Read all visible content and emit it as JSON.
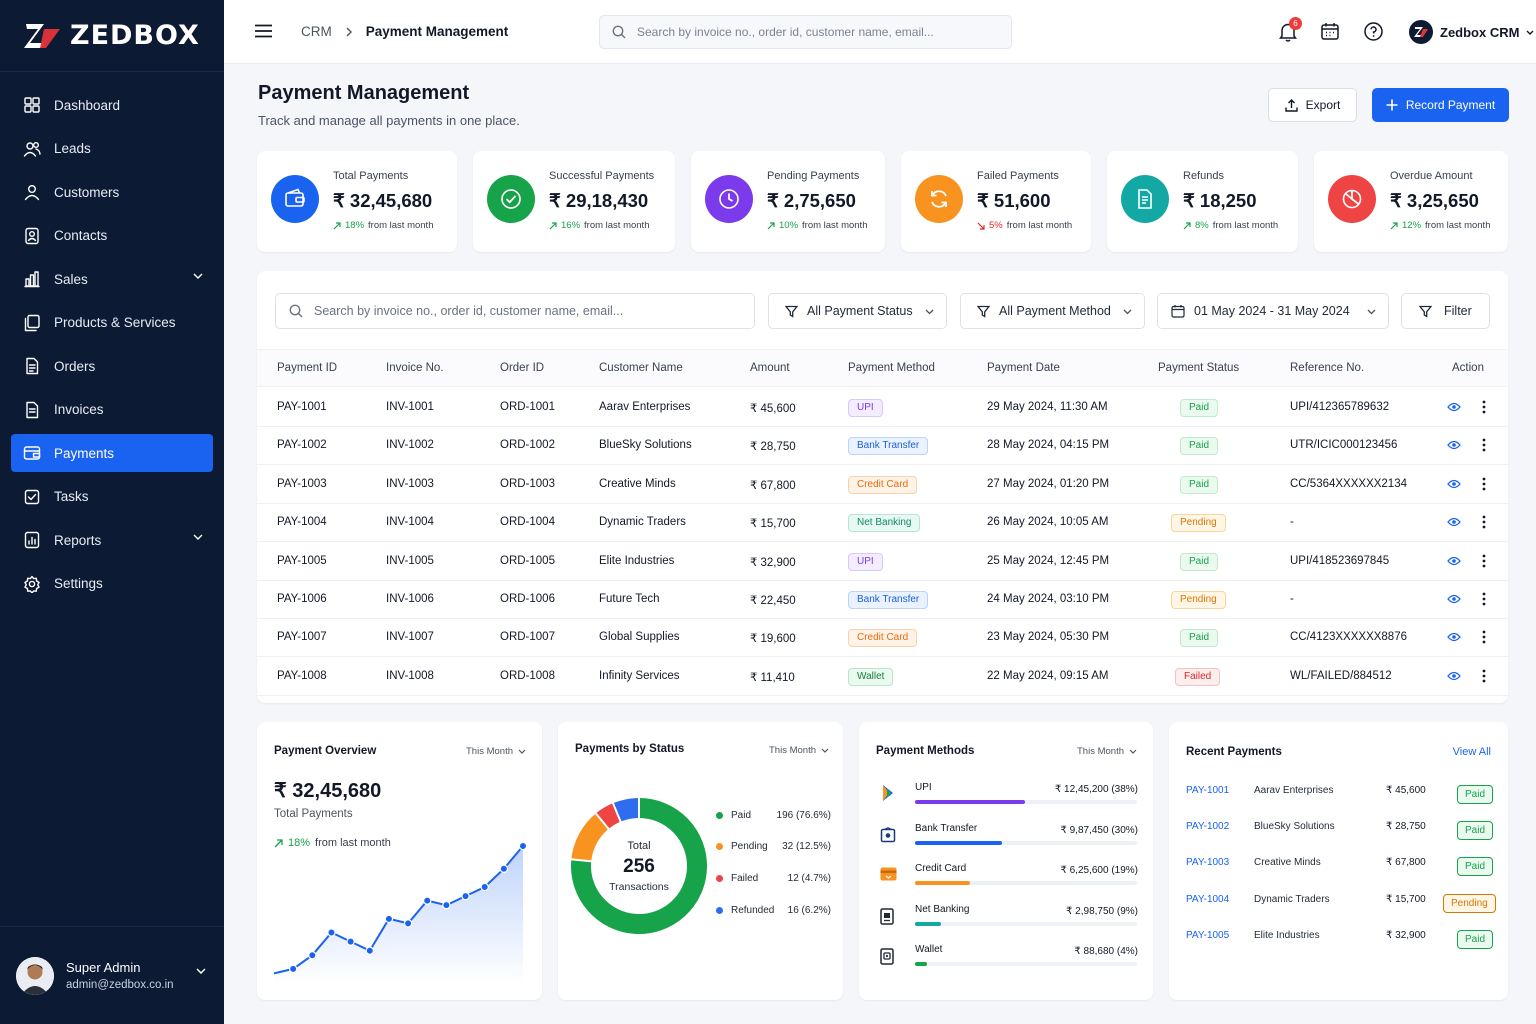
{
  "brand": {
    "name": "ZEDBOX"
  },
  "sidebar": {
    "items": [
      {
        "label": "Dashboard"
      },
      {
        "label": "Leads"
      },
      {
        "label": "Customers"
      },
      {
        "label": "Contacts"
      },
      {
        "label": "Sales"
      },
      {
        "label": "Products & Services"
      },
      {
        "label": "Orders"
      },
      {
        "label": "Invoices"
      },
      {
        "label": "Payments"
      },
      {
        "label": "Tasks"
      },
      {
        "label": "Reports"
      },
      {
        "label": "Settings"
      }
    ],
    "active_item": "Payments",
    "user": {
      "name": "Super Admin",
      "email": "admin@zedbox.co.in"
    }
  },
  "topbar": {
    "breadcrumb": [
      "CRM",
      "Payment Management"
    ],
    "search_placeholder": "Search by invoice no., order id, customer name, email...",
    "notification_count": "6",
    "account_name": "Zedbox CRM"
  },
  "header": {
    "title": "Payment Management",
    "subtitle": "Track and manage all payments in one place.",
    "export_label": "Export",
    "record_label": "Record Payment"
  },
  "kpis": [
    {
      "label": "Total Payments",
      "value": "₹ 32,45,680",
      "change": "18%",
      "direction": "up",
      "suffix": "from last month",
      "color": "#1a63f0"
    },
    {
      "label": "Successful Payments",
      "value": "₹ 29,18,430",
      "change": "16%",
      "direction": "up",
      "suffix": "from last month",
      "color": "#16a34a"
    },
    {
      "label": "Pending Payments",
      "value": "₹ 2,75,650",
      "change": "10%",
      "direction": "up",
      "suffix": "from last month",
      "color": "#7c3aed"
    },
    {
      "label": "Failed Payments",
      "value": "₹ 51,600",
      "change": "5%",
      "direction": "down",
      "suffix": "from last month",
      "color": "#f7931e"
    },
    {
      "label": "Refunds",
      "value": "₹ 18,250",
      "change": "8%",
      "direction": "up",
      "suffix": "from last month",
      "color": "#14a8a4"
    },
    {
      "label": "Overdue Amount",
      "value": "₹ 3,25,650",
      "change": "12%",
      "direction": "up",
      "suffix": "from last month",
      "color": "#ef4444"
    }
  ],
  "filters": {
    "search_placeholder": "Search by invoice no., order id, customer name, email...",
    "status": "All Payment Status",
    "method": "All Payment Method",
    "date_range": "01 May 2024 - 31 May 2024",
    "filter_label": "Filter"
  },
  "table": {
    "columns": [
      "Payment ID",
      "Invoice No.",
      "Order ID",
      "Customer Name",
      "Amount",
      "Payment Method",
      "Payment Date",
      "Payment Status",
      "Reference No.",
      "Action"
    ],
    "rows": [
      {
        "id": "PAY-1001",
        "invoice": "INV-1001",
        "order": "ORD-1001",
        "customer": "Aarav Enterprises",
        "amount": "₹ 45,600",
        "method": "UPI",
        "date": "29 May 2024, 11:30 AM",
        "status": "Paid",
        "ref": "UPI/412365789632"
      },
      {
        "id": "PAY-1002",
        "invoice": "INV-1002",
        "order": "ORD-1002",
        "customer": "BlueSky Solutions",
        "amount": "₹ 28,750",
        "method": "Bank Transfer",
        "date": "28 May 2024, 04:15 PM",
        "status": "Paid",
        "ref": "UTR/ICIC000123456"
      },
      {
        "id": "PAY-1003",
        "invoice": "INV-1003",
        "order": "ORD-1003",
        "customer": "Creative Minds",
        "amount": "₹ 67,800",
        "method": "Credit Card",
        "date": "27 May 2024, 01:20 PM",
        "status": "Paid",
        "ref": "CC/5364XXXXXX2134"
      },
      {
        "id": "PAY-1004",
        "invoice": "INV-1004",
        "order": "ORD-1004",
        "customer": "Dynamic Traders",
        "amount": "₹ 15,700",
        "method": "Net Banking",
        "date": "26 May 2024, 10:05 AM",
        "status": "Pending",
        "ref": "-"
      },
      {
        "id": "PAY-1005",
        "invoice": "INV-1005",
        "order": "ORD-1005",
        "customer": "Elite Industries",
        "amount": "₹ 32,900",
        "method": "UPI",
        "date": "25 May 2024, 12:45 PM",
        "status": "Paid",
        "ref": "UPI/418523697845"
      },
      {
        "id": "PAY-1006",
        "invoice": "INV-1006",
        "order": "ORD-1006",
        "customer": "Future Tech",
        "amount": "₹ 22,450",
        "method": "Bank Transfer",
        "date": "24 May 2024, 03:10 PM",
        "status": "Pending",
        "ref": "-"
      },
      {
        "id": "PAY-1007",
        "invoice": "INV-1007",
        "order": "ORD-1007",
        "customer": "Global Supplies",
        "amount": "₹ 19,600",
        "method": "Credit Card",
        "date": "23 May 2024, 05:30 PM",
        "status": "Paid",
        "ref": "CC/4123XXXXXX8876"
      },
      {
        "id": "PAY-1008",
        "invoice": "INV-1008",
        "order": "ORD-1008",
        "customer": "Infinity Services",
        "amount": "₹ 11,410",
        "method": "Wallet",
        "date": "22 May 2024, 09:15 AM",
        "status": "Failed",
        "ref": "WL/FAILED/884512"
      }
    ]
  },
  "overview": {
    "title": "Payment Overview",
    "range": "This Month",
    "total": "₹ 32,45,680",
    "total_label": "Total Payments",
    "change": "18%",
    "change_suffix": "from last month"
  },
  "by_status": {
    "title": "Payments by Status",
    "range": "This Month",
    "center_label": "Total",
    "center_value": "256",
    "center_sub": "Transactions"
  },
  "methods": {
    "title": "Payment Methods",
    "range": "This Month",
    "items": [
      {
        "name": "UPI",
        "amount": "₹ 12,45,200 (38%)",
        "share": 0.38,
        "color": "#7c3aed"
      },
      {
        "name": "Bank Transfer",
        "amount": "₹ 9,87,450 (30%)",
        "share": 0.3,
        "color": "#1a63f0"
      },
      {
        "name": "Credit Card",
        "amount": "₹ 6,25,600 (19%)",
        "share": 0.19,
        "color": "#f7931e"
      },
      {
        "name": "Net Banking",
        "amount": "₹ 2,98,750 (9%)",
        "share": 0.09,
        "color": "#14a8a4"
      },
      {
        "name": "Wallet",
        "amount": "₹ 88,680 (4%)",
        "share": 0.04,
        "color": "#16a34a"
      }
    ]
  },
  "recent": {
    "title": "Recent Payments",
    "view_all": "View All",
    "rows": [
      {
        "id": "PAY-1001",
        "customer": "Aarav Enterprises",
        "amount": "₹ 45,600",
        "status": "Paid"
      },
      {
        "id": "PAY-1002",
        "customer": "BlueSky Solutions",
        "amount": "₹ 28,750",
        "status": "Paid"
      },
      {
        "id": "PAY-1003",
        "customer": "Creative Minds",
        "amount": "₹ 67,800",
        "status": "Paid"
      },
      {
        "id": "PAY-1004",
        "customer": "Dynamic Traders",
        "amount": "₹ 15,700",
        "status": "Pending"
      },
      {
        "id": "PAY-1005",
        "customer": "Elite Industries",
        "amount": "₹ 32,900",
        "status": "Paid"
      }
    ]
  },
  "chart_data": [
    {
      "type": "area",
      "title": "Payment Overview",
      "values": [
        1,
        2,
        5,
        10,
        8,
        6,
        13,
        12,
        17,
        16,
        18,
        20,
        24,
        29
      ],
      "color": "#1a63f0"
    },
    {
      "type": "pie",
      "title": "Payments by Status",
      "categories": [
        "Paid",
        "Pending",
        "Failed",
        "Refunded"
      ],
      "values": [
        196,
        32,
        12,
        16
      ],
      "labels": [
        "196 (76.6%)",
        "32 (12.5%)",
        "12 (4.7%)",
        "16 (6.2%)"
      ],
      "colors": [
        "#16a34a",
        "#f7931e",
        "#ef4444",
        "#2f6df0"
      ]
    }
  ]
}
